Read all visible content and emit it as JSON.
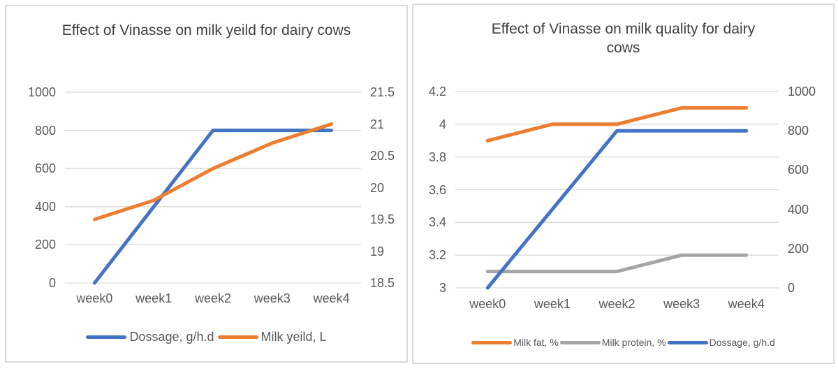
{
  "colors": {
    "blue": "#4472C4",
    "orange": "#ED7D31",
    "gray": "#A5A5A5",
    "gridline": "#D9D9D9",
    "title_text": "#404040",
    "axis_text": "#595959",
    "panel_border": "#D9D9D9"
  },
  "chart_data": [
    {
      "type": "line",
      "title": "Effect of Vinasse on milk yeild for dairy cows",
      "categories": [
        "week0",
        "week1",
        "week2",
        "week3",
        "week4"
      ],
      "series": [
        {
          "name": "Dossage, g/h.d",
          "axis": "left",
          "color": "#4472C4",
          "values": [
            0,
            400,
            800,
            800,
            800
          ]
        },
        {
          "name": "Milk yeild, L",
          "axis": "right",
          "color": "#ED7D31",
          "values": [
            19.5,
            19.8,
            20.3,
            20.7,
            21
          ]
        }
      ],
      "left_axis": {
        "min": 0,
        "max": 1000,
        "tick_labels": [
          "1000",
          "800",
          "600",
          "400",
          "200",
          "0"
        ]
      },
      "right_axis": {
        "min": 18.5,
        "max": 21.5,
        "tick_labels": [
          "21.5",
          "21",
          "20.5",
          "20",
          "19.5",
          "19",
          "18.5"
        ]
      },
      "grid": "horizontal gridlines on primary (left) axis",
      "legend_position": "bottom"
    },
    {
      "type": "line",
      "title": "Effect of Vinasse on milk quality for dairy cows",
      "categories": [
        "week0",
        "week1",
        "week2",
        "week3",
        "week4"
      ],
      "series": [
        {
          "name": "Milk fat, %",
          "axis": "left",
          "color": "#ED7D31",
          "values": [
            3.9,
            4.0,
            4.0,
            4.1,
            4.1
          ]
        },
        {
          "name": "Milk protein, %",
          "axis": "left",
          "color": "#A5A5A5",
          "values": [
            3.1,
            3.1,
            3.1,
            3.2,
            3.2
          ]
        },
        {
          "name": "Dossage, g/h.d",
          "axis": "right",
          "color": "#4472C4",
          "values": [
            0,
            400,
            800,
            800,
            800
          ]
        }
      ],
      "left_axis": {
        "min": 3,
        "max": 4.2,
        "tick_labels": [
          "4.2",
          "4",
          "3.8",
          "3.6",
          "3.4",
          "3.2",
          "3"
        ]
      },
      "right_axis": {
        "min": 0,
        "max": 1000,
        "tick_labels": [
          "1000",
          "800",
          "600",
          "400",
          "200",
          "0"
        ]
      },
      "grid": "horizontal gridlines on primary (left) axis",
      "legend_position": "bottom"
    }
  ]
}
